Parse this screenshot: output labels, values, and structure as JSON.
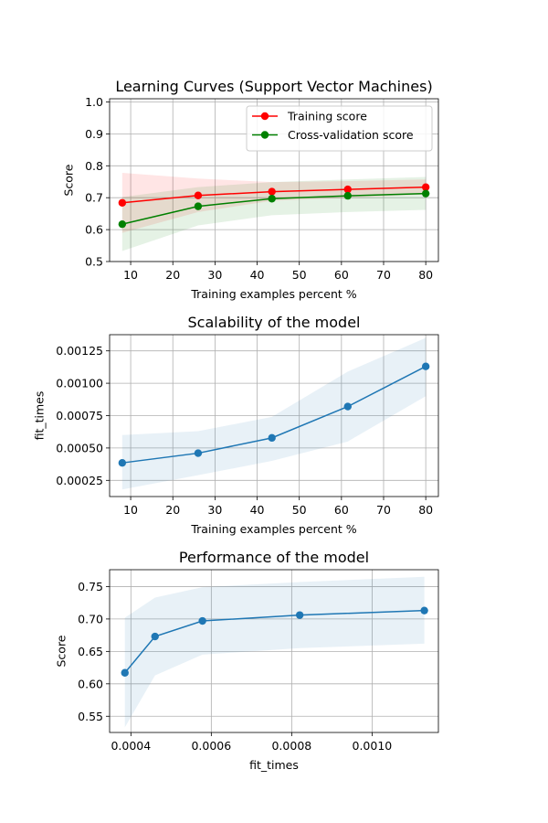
{
  "chart_data": [
    {
      "type": "line",
      "title": "Learning Curves (Support Vector Machines)",
      "xlabel": "Training examples percent %",
      "ylabel": "Score",
      "xlim": [
        5,
        83
      ],
      "ylim": [
        0.5,
        1.01
      ],
      "xticks": [
        10,
        20,
        30,
        40,
        50,
        60,
        70,
        80
      ],
      "yticks": [
        0.5,
        0.6,
        0.7,
        0.8,
        0.9,
        1.0
      ],
      "xtick_labels": [
        "10",
        "20",
        "30",
        "40",
        "50",
        "60",
        "70",
        "80"
      ],
      "ytick_labels": [
        "0.5",
        "0.6",
        "0.7",
        "0.8",
        "0.9",
        "1.0"
      ],
      "grid": true,
      "legend": "top-right",
      "x": [
        8,
        26,
        43.5,
        61.5,
        80
      ],
      "series": [
        {
          "name": "Training score",
          "color": "#ff0000",
          "values": [
            0.684,
            0.707,
            0.719,
            0.726,
            0.733
          ],
          "band_low": [
            0.59,
            0.655,
            0.69,
            0.7,
            0.71
          ],
          "band_high": [
            0.778,
            0.76,
            0.749,
            0.752,
            0.757
          ]
        },
        {
          "name": "Cross-validation score",
          "color": "#008000",
          "values": [
            0.617,
            0.673,
            0.697,
            0.706,
            0.713
          ],
          "band_low": [
            0.533,
            0.613,
            0.645,
            0.655,
            0.662
          ],
          "band_high": [
            0.702,
            0.733,
            0.749,
            0.757,
            0.765
          ]
        }
      ]
    },
    {
      "type": "line",
      "title": "Scalability of the model",
      "xlabel": "Training examples percent %",
      "ylabel": "fit_times",
      "xlim": [
        5,
        83
      ],
      "ylim": [
        0.000125,
        0.001375
      ],
      "xticks": [
        10,
        20,
        30,
        40,
        50,
        60,
        70,
        80
      ],
      "yticks": [
        0.00025,
        0.0005,
        0.00075,
        0.001,
        0.00125
      ],
      "xtick_labels": [
        "10",
        "20",
        "30",
        "40",
        "50",
        "60",
        "70",
        "80"
      ],
      "ytick_labels": [
        "0.00025",
        "0.00050",
        "0.00075",
        "0.00100",
        "0.00125"
      ],
      "grid": true,
      "x": [
        8,
        26,
        43.5,
        61.5,
        80
      ],
      "series": [
        {
          "color": "#1f77b4",
          "values": [
            0.000385,
            0.00046,
            0.000578,
            0.00082,
            0.00113
          ],
          "band_low": [
            0.00018,
            0.00029,
            0.0004,
            0.00055,
            0.0009
          ],
          "band_high": [
            0.0006,
            0.00063,
            0.00074,
            0.00109,
            0.00135
          ]
        }
      ]
    },
    {
      "type": "line",
      "title": "Performance of the model",
      "xlabel": "fit_times",
      "ylabel": "Score",
      "xlim": [
        0.000347,
        0.001165
      ],
      "ylim": [
        0.525,
        0.776
      ],
      "xticks": [
        0.0004,
        0.0006,
        0.0008,
        0.001
      ],
      "yticks": [
        0.55,
        0.6,
        0.65,
        0.7,
        0.75
      ],
      "xtick_labels": [
        "0.0004",
        "0.0006",
        "0.0008",
        "0.0010"
      ],
      "ytick_labels": [
        "0.55",
        "0.60",
        "0.65",
        "0.70",
        "0.75"
      ],
      "grid": true,
      "x": [
        0.000385,
        0.00046,
        0.000578,
        0.00082,
        0.00113
      ],
      "series": [
        {
          "color": "#1f77b4",
          "values": [
            0.617,
            0.673,
            0.697,
            0.706,
            0.713
          ],
          "band_low": [
            0.533,
            0.613,
            0.645,
            0.655,
            0.662
          ],
          "band_high": [
            0.702,
            0.733,
            0.749,
            0.757,
            0.765
          ]
        }
      ]
    }
  ]
}
